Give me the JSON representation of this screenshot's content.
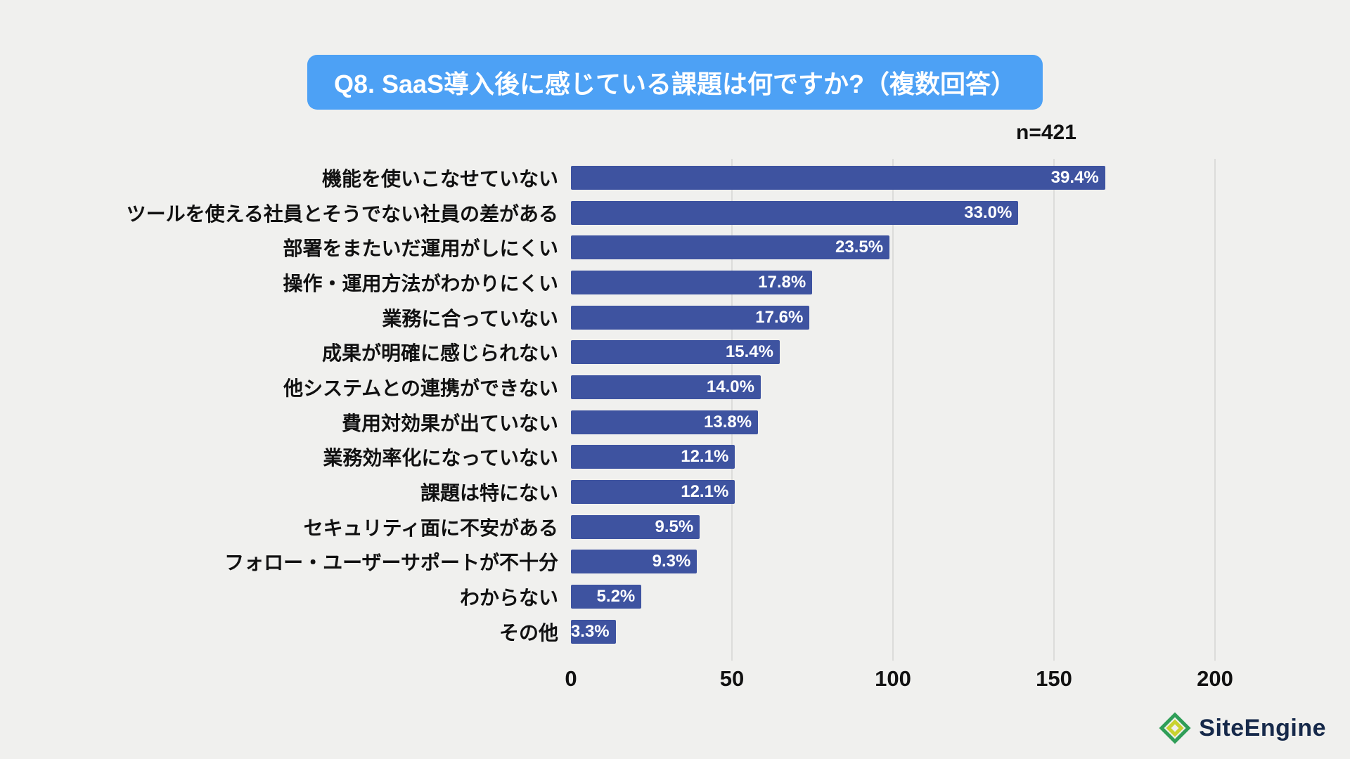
{
  "title": "Q8. SaaS導入後に感じている課題は何ですか?（複数回答）",
  "sample_size_label": "n=421",
  "chart_data": {
    "type": "bar",
    "orientation": "horizontal",
    "title": "Q8. SaaS導入後に感じている課題は何ですか?（複数回答）",
    "n": 421,
    "categories": [
      "機能を使いこなせていない",
      "ツールを使える社員とそうでない社員の差がある",
      "部署をまたいだ運用がしにくい",
      "操作・運用方法がわかりにくい",
      "業務に合っていない",
      "成果が明確に感じられない",
      "他システムとの連携ができない",
      "費用対効果が出ていない",
      "業務効率化になっていない",
      "課題は特にない",
      "セキュリティ面に不安がある",
      "フォロー・ユーザーサポートが不十分",
      "わからない",
      "その他"
    ],
    "values_percent": [
      39.4,
      33.0,
      23.5,
      17.8,
      17.6,
      15.4,
      14.0,
      13.8,
      12.1,
      12.1,
      9.5,
      9.3,
      5.2,
      3.3
    ],
    "value_labels": [
      "39.4%",
      "33.0%",
      "23.5%",
      "17.8%",
      "17.6%",
      "15.4%",
      "14.0%",
      "13.8%",
      "12.1%",
      "12.1%",
      "9.5%",
      "9.3%",
      "5.2%",
      "3.3%"
    ],
    "x_axis_ticks": [
      0,
      50,
      100,
      150,
      200
    ],
    "xlim": [
      0,
      200
    ],
    "xlabel": "",
    "ylabel": "",
    "grid": true,
    "legend": "none",
    "bar_color": "#3e53a0"
  },
  "footer": {
    "logo_text": "SiteEngine"
  },
  "colors": {
    "background": "#f0f0ee",
    "title_bg": "#4da1f5",
    "title_text": "#ffffff",
    "bar": "#3e53a0",
    "value_label_text": "#ffffff",
    "gridline": "#dcdcda",
    "logo_text": "#16294a",
    "logo_green": "#2f9e57",
    "logo_accent": "#c8d22e"
  }
}
